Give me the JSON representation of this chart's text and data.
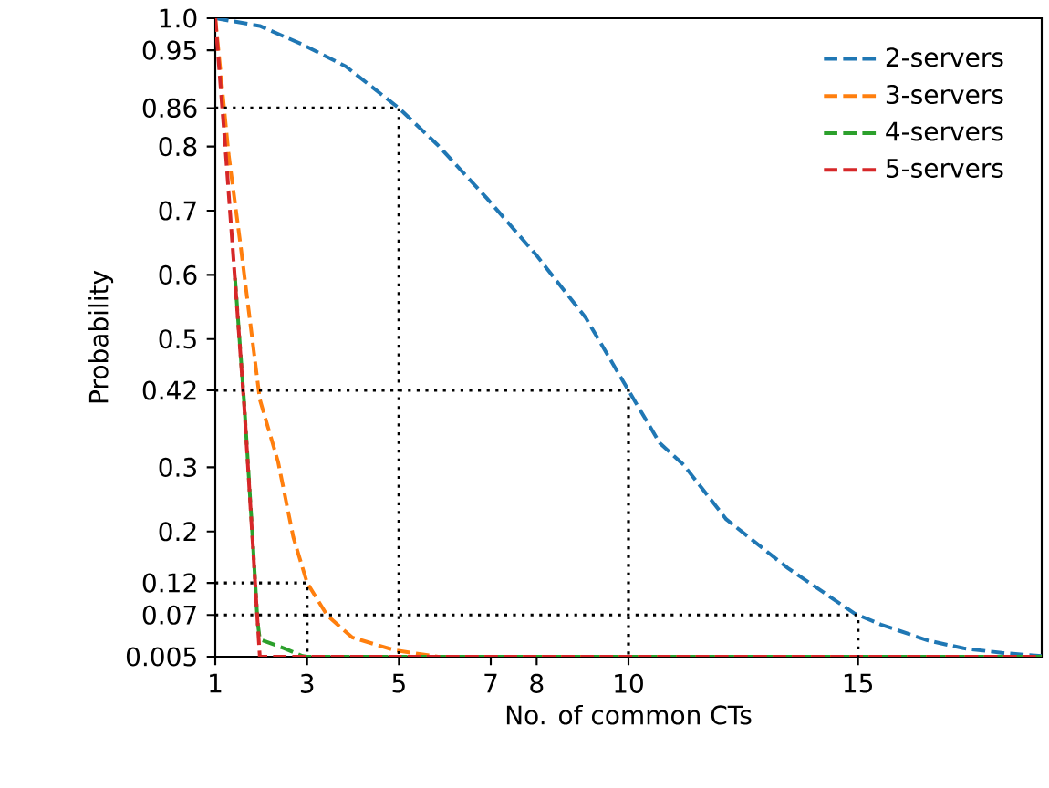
{
  "chart_data": {
    "type": "line",
    "xlabel": "No. of common CTs",
    "ylabel": "Probability",
    "xlim": [
      1,
      19
    ],
    "ylim": [
      0.005,
      1.0
    ],
    "xticks": [
      1,
      3,
      5,
      7,
      8,
      10,
      15
    ],
    "yticks": [
      0.005,
      0.07,
      0.12,
      0.2,
      0.3,
      0.42,
      0.5,
      0.6,
      0.7,
      0.8,
      0.86,
      0.95,
      {
        "value": 1.0,
        "label": "1.0"
      }
    ],
    "legend": "top right",
    "grid": false,
    "marker": "none",
    "series": [
      {
        "name": "2-servers",
        "color": "#1f77b4",
        "line_style": "dashed",
        "x": [
          1,
          1.97,
          2.9,
          3.84,
          5,
          5.85,
          6.92,
          7.99,
          9.07,
          10,
          10.68,
          11.2,
          12.13,
          13.47,
          14.93,
          15.5,
          16.53,
          17.3,
          18.13,
          19
        ],
        "values": [
          1.0,
          0.988,
          0.959,
          0.925,
          0.86,
          0.802,
          0.719,
          0.631,
          0.533,
          0.42,
          0.338,
          0.304,
          0.219,
          0.143,
          0.072,
          0.055,
          0.03,
          0.018,
          0.011,
          0.006
        ]
      },
      {
        "name": "3-servers",
        "color": "#ff7f0e",
        "line_style": "dashed",
        "x": [
          1,
          1.29,
          1.56,
          1.97,
          2.37,
          2.7,
          3,
          3.44,
          3.98,
          4.91,
          5.85,
          19
        ],
        "values": [
          1.0,
          0.788,
          0.641,
          0.406,
          0.308,
          0.191,
          0.12,
          0.069,
          0.035,
          0.015,
          0.005,
          0.005
        ]
      },
      {
        "name": "4-servers",
        "color": "#2ca02c",
        "line_style": "dashed",
        "x": [
          1.43,
          1.63,
          1.8,
          1.92,
          1.97,
          2.5,
          2.9,
          3,
          19
        ],
        "values": [
          0.595,
          0.4,
          0.205,
          0.06,
          0.032,
          0.018,
          0.006,
          0.005,
          0.005
        ]
      },
      {
        "name": "5-servers",
        "color": "#d62728",
        "line_style": "dashed",
        "x": [
          1,
          1.23,
          1.43,
          1.63,
          1.8,
          1.9,
          1.97,
          19
        ],
        "values": [
          1.0,
          0.788,
          0.592,
          0.396,
          0.2,
          0.083,
          0.005,
          0.005
        ]
      },
      {
        "color": "#000000",
        "line_style": "dotted",
        "x": [
          1,
          5,
          5
        ],
        "values": [
          0.86,
          0.86,
          0.005
        ]
      },
      {
        "color": "#000000",
        "line_style": "dotted",
        "x": [
          1,
          10,
          10
        ],
        "values": [
          0.42,
          0.42,
          0.005
        ]
      },
      {
        "color": "#000000",
        "line_style": "dotted",
        "x": [
          1,
          15,
          15
        ],
        "values": [
          0.07,
          0.07,
          0.005
        ]
      },
      {
        "color": "#000000",
        "line_style": "dotted",
        "x": [
          1,
          3,
          3
        ],
        "values": [
          0.12,
          0.12,
          0.005
        ]
      }
    ]
  }
}
